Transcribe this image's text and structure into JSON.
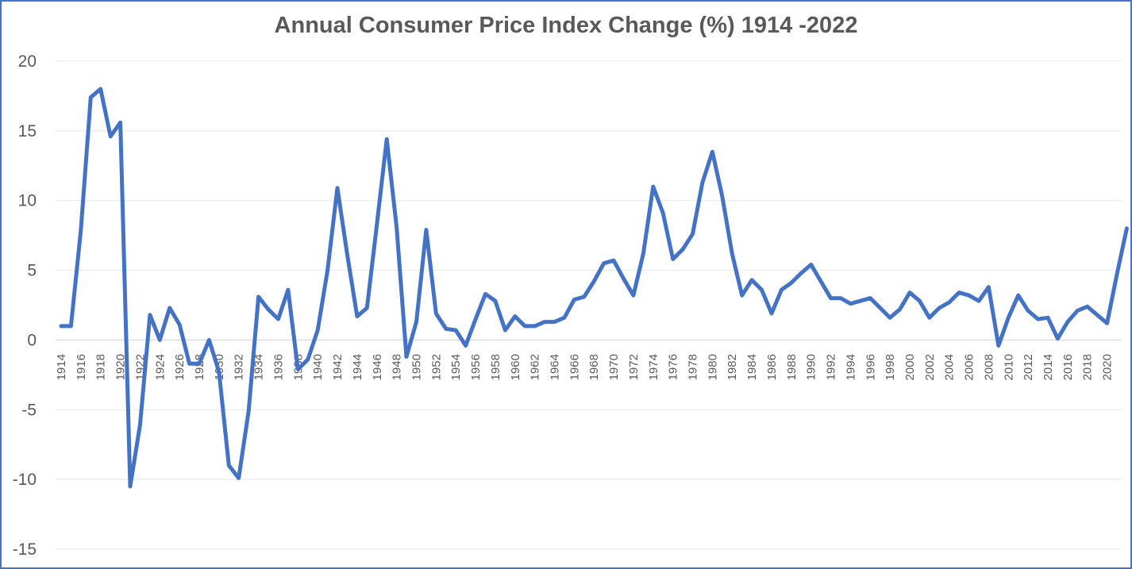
{
  "chart_data": {
    "type": "line",
    "title": "Annual Consumer Price Index Change (%) 1914 -2022",
    "xlabel": "",
    "ylabel": "",
    "ylim": [
      -15,
      20
    ],
    "yticks": [
      "20",
      "15",
      "10",
      "5",
      "0",
      "-5",
      "-10",
      "-15"
    ],
    "grid": "horizontal",
    "series_color": "#4472c4",
    "x": [
      1914,
      1915,
      1916,
      1917,
      1918,
      1919,
      1920,
      1921,
      1922,
      1923,
      1924,
      1925,
      1926,
      1927,
      1928,
      1929,
      1930,
      1931,
      1932,
      1933,
      1934,
      1935,
      1936,
      1937,
      1938,
      1939,
      1940,
      1941,
      1942,
      1943,
      1944,
      1945,
      1946,
      1947,
      1948,
      1949,
      1950,
      1951,
      1952,
      1953,
      1954,
      1955,
      1956,
      1957,
      1958,
      1959,
      1960,
      1961,
      1962,
      1963,
      1964,
      1965,
      1966,
      1967,
      1968,
      1969,
      1970,
      1971,
      1972,
      1973,
      1974,
      1975,
      1976,
      1977,
      1978,
      1979,
      1980,
      1981,
      1982,
      1983,
      1984,
      1985,
      1986,
      1987,
      1988,
      1989,
      1990,
      1991,
      1992,
      1993,
      1994,
      1995,
      1996,
      1997,
      1998,
      1999,
      2000,
      2001,
      2002,
      2003,
      2004,
      2005,
      2006,
      2007,
      2008,
      2009,
      2010,
      2011,
      2012,
      2013,
      2014,
      2015,
      2016,
      2017,
      2018,
      2019,
      2020,
      2021,
      2022
    ],
    "xtick_labels": [
      "1914",
      "1916",
      "1918",
      "1920",
      "1922",
      "1924",
      "1926",
      "1928",
      "1930",
      "1932",
      "1934",
      "1936",
      "1938",
      "1940",
      "1942",
      "1944",
      "1946",
      "1948",
      "1950",
      "1952",
      "1954",
      "1956",
      "1958",
      "1960",
      "1962",
      "1964",
      "1966",
      "1968",
      "1970",
      "1972",
      "1974",
      "1976",
      "1978",
      "1980",
      "1982",
      "1984",
      "1986",
      "1988",
      "1990",
      "1992",
      "1994",
      "1996",
      "1998",
      "2000",
      "2002",
      "2004",
      "2006",
      "2008",
      "2010",
      "2012",
      "2014",
      "2016",
      "2018",
      "2020"
    ],
    "values": [
      1.0,
      1.0,
      7.9,
      17.4,
      18.0,
      14.6,
      15.6,
      -10.5,
      -6.1,
      1.8,
      0.0,
      2.3,
      1.1,
      -1.7,
      -1.7,
      0.0,
      -2.3,
      -9.0,
      -9.9,
      -5.1,
      3.1,
      2.2,
      1.5,
      3.6,
      -2.1,
      -1.4,
      0.7,
      5.0,
      10.9,
      6.1,
      1.7,
      2.3,
      8.3,
      14.4,
      8.1,
      -1.2,
      1.3,
      7.9,
      1.9,
      0.8,
      0.7,
      -0.4,
      1.5,
      3.3,
      2.8,
      0.7,
      1.7,
      1.0,
      1.0,
      1.3,
      1.3,
      1.6,
      2.9,
      3.1,
      4.2,
      5.5,
      5.7,
      4.4,
      3.2,
      6.2,
      11.0,
      9.1,
      5.8,
      6.5,
      7.6,
      11.3,
      13.5,
      10.3,
      6.2,
      3.2,
      4.3,
      3.6,
      1.9,
      3.6,
      4.1,
      4.8,
      5.4,
      4.2,
      3.0,
      3.0,
      2.6,
      2.8,
      3.0,
      2.3,
      1.6,
      2.2,
      3.4,
      2.8,
      1.6,
      2.3,
      2.7,
      3.4,
      3.2,
      2.8,
      3.8,
      -0.4,
      1.6,
      3.2,
      2.1,
      1.5,
      1.6,
      0.1,
      1.3,
      2.1,
      2.4,
      1.8,
      1.2,
      4.7,
      8.0
    ]
  }
}
